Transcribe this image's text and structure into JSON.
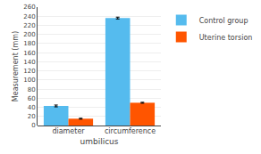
{
  "chart_data": {
    "type": "bar",
    "categories": [
      "diameter",
      "circumference"
    ],
    "series": [
      {
        "name": "Control group",
        "color": "#55BBEE",
        "values": [
          43,
          236
        ],
        "errors": [
          2,
          2
        ]
      },
      {
        "name": "Uterine torsion",
        "color": "#FF5500",
        "values": [
          15,
          50
        ],
        "errors": [
          1,
          1
        ]
      }
    ],
    "xlabel": "umbilicus",
    "ylabel": "Measurement (mm)",
    "ylim": [
      0,
      260
    ],
    "yticks": [
      0,
      20,
      40,
      60,
      80,
      100,
      120,
      140,
      160,
      180,
      200,
      220,
      240,
      260
    ],
    "grid": true,
    "legend": "upper right"
  }
}
